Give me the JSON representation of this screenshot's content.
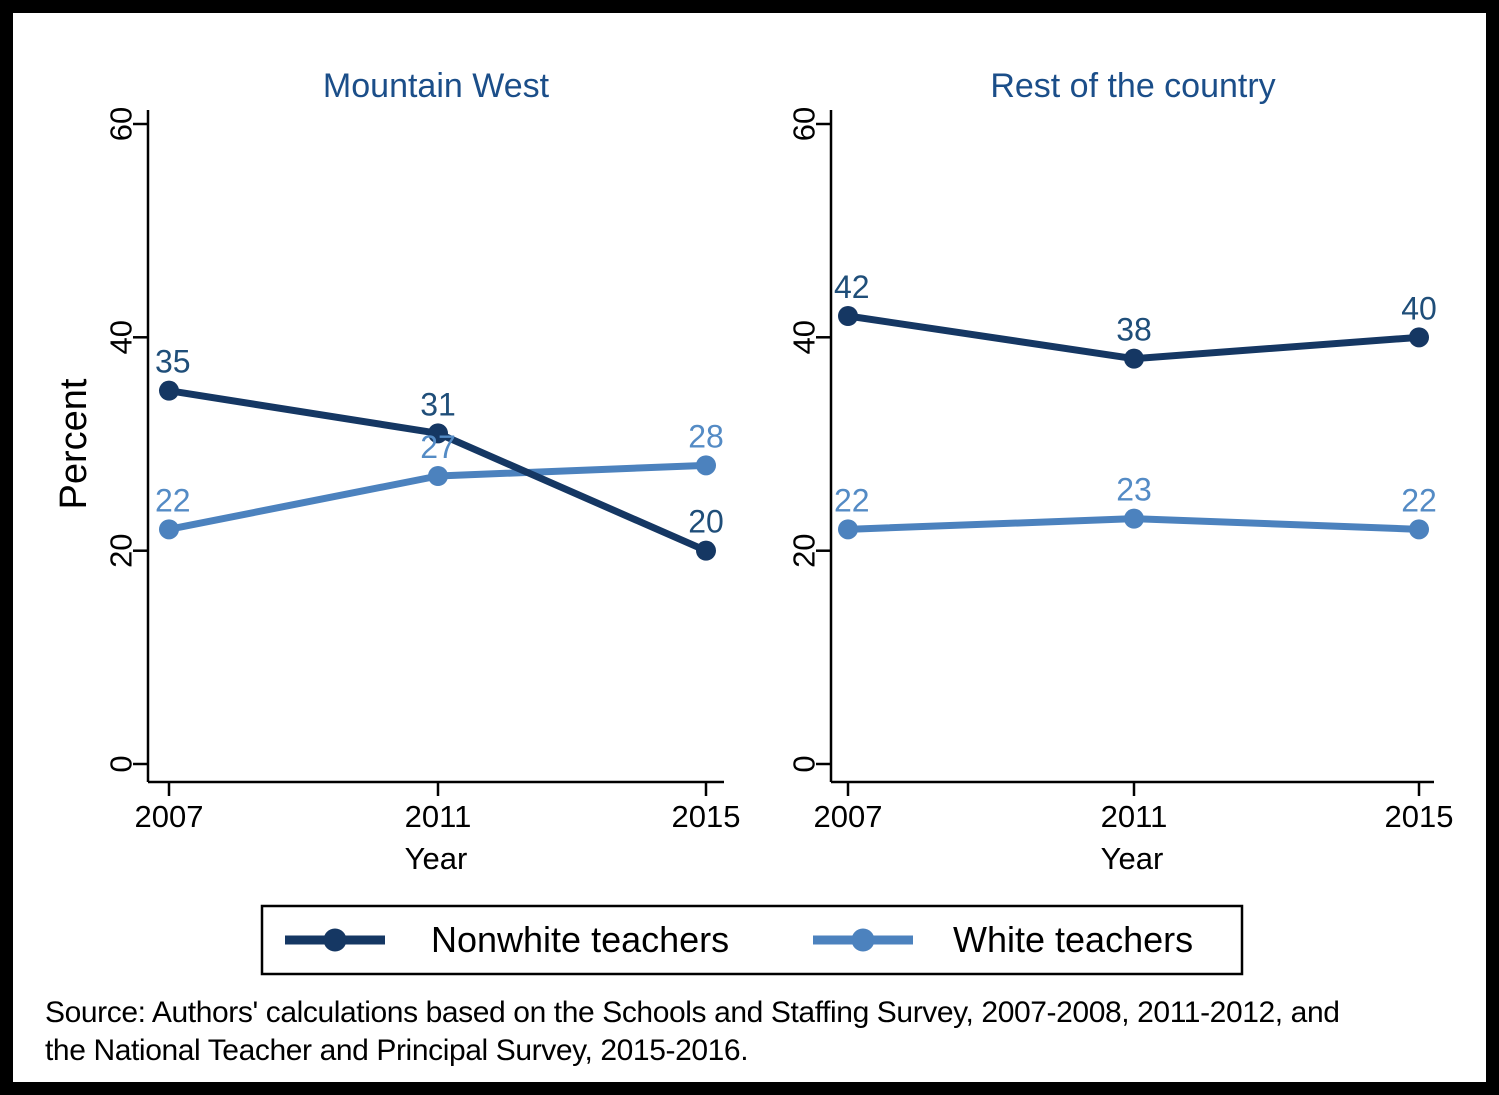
{
  "figure": {
    "source_note_line1": "Source: Authors' calculations based on the Schools and Staffing Survey, 2007-2008, 2011-2012, and",
    "source_note_line2": "the National Teacher and Principal Survey, 2015-2016."
  },
  "colors": {
    "nonwhite_series": "#153763",
    "white_series": "#4C82BE",
    "nonwhite_label": "#1F4E79",
    "white_label": "#548BC5",
    "panel_title": "#1B4E89",
    "axis_black": "#000000",
    "background": "#FFFFFF",
    "frame": "#000000"
  },
  "legend": {
    "position": "bottom-center",
    "entries": [
      {
        "label": "Nonwhite teachers",
        "color": "#153763"
      },
      {
        "label": "White teachers",
        "color": "#4C82BE"
      }
    ]
  },
  "chart_data": [
    {
      "type": "line",
      "title": "Mountain West",
      "xlabel": "Year",
      "ylabel": "Percent",
      "x": [
        "2007",
        "2011",
        "2015"
      ],
      "yticks": [
        0,
        20,
        40,
        60
      ],
      "ylim": [
        0,
        60
      ],
      "grid": false,
      "legend_position": "bottom",
      "series": [
        {
          "name": "Nonwhite teachers",
          "values": [
            35,
            31,
            20
          ],
          "color": "#153763",
          "label_color": "#1F4E79"
        },
        {
          "name": "White teachers",
          "values": [
            22,
            27,
            28
          ],
          "color": "#4C82BE",
          "label_color": "#548BC5"
        }
      ]
    },
    {
      "type": "line",
      "title": "Rest of the country",
      "xlabel": "Year",
      "ylabel": "",
      "x": [
        "2007",
        "2011",
        "2015"
      ],
      "yticks": [
        0,
        20,
        40,
        60
      ],
      "ylim": [
        0,
        60
      ],
      "grid": false,
      "legend_position": "bottom",
      "series": [
        {
          "name": "Nonwhite teachers",
          "values": [
            42,
            38,
            40
          ],
          "color": "#153763",
          "label_color": "#1F4E79"
        },
        {
          "name": "White teachers",
          "values": [
            22,
            23,
            22
          ],
          "color": "#4C82BE",
          "label_color": "#548BC5"
        }
      ]
    }
  ]
}
